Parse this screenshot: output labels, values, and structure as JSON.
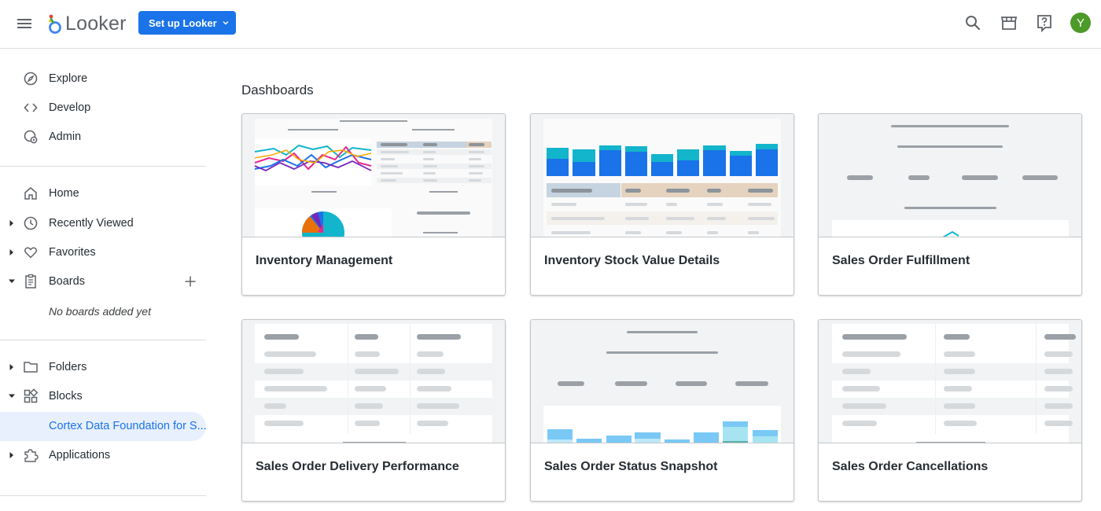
{
  "header": {
    "logo_text": "Looker",
    "setup_label": "Set up Looker",
    "avatar_initial": "Y",
    "accent_color": "#1a73e8",
    "icons": [
      "menu-icon",
      "search-icon",
      "marketplace-icon",
      "help-icon"
    ]
  },
  "sidebar": {
    "top_items": [
      {
        "label": "Explore",
        "icon": "compass-icon"
      },
      {
        "label": "Develop",
        "icon": "code-icon"
      },
      {
        "label": "Admin",
        "icon": "admin-gear-icon"
      }
    ],
    "items": [
      {
        "label": "Home",
        "icon": "home-icon"
      },
      {
        "label": "Recently Viewed",
        "icon": "clock-icon"
      },
      {
        "label": "Favorites",
        "icon": "heart-icon"
      },
      {
        "label": "Boards",
        "icon": "boards-icon"
      }
    ],
    "no_boards_text": "No boards added yet",
    "folders_label": "Folders",
    "blocks_label": "Blocks",
    "active_item_label": "Cortex Data Foundation for S...",
    "applications_label": "Applications"
  },
  "main": {
    "section_title": "Dashboards",
    "cards": [
      {
        "title": "Inventory Management"
      },
      {
        "title": "Inventory Stock Value Details"
      },
      {
        "title": "Sales Order Fulfillment"
      },
      {
        "title": "Sales Order Delivery Performance"
      },
      {
        "title": "Sales Order Status Snapshot"
      },
      {
        "title": "Sales Order Cancellations"
      }
    ]
  }
}
